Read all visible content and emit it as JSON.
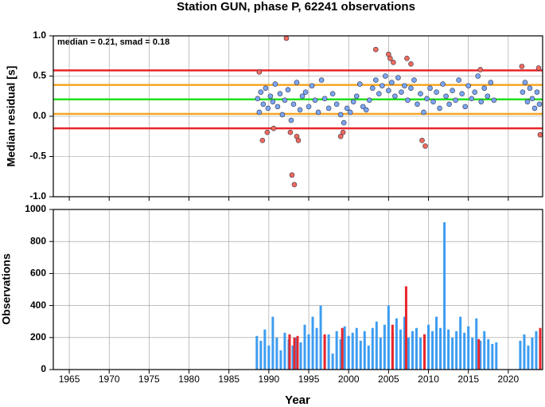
{
  "chart_data": [
    {
      "type": "scatter",
      "title": "Station GUN, phase P, 62241 observations",
      "ylabel": "Median residual [s]",
      "annotation": "median = 0.21, smad = 0.18",
      "xlim": [
        1963,
        2024.3
      ],
      "xticks": [
        1965,
        1970,
        1975,
        1980,
        1985,
        1990,
        1995,
        2000,
        2005,
        2010,
        2015,
        2020
      ],
      "ylim": [
        -1,
        1
      ],
      "yticks": [
        {
          "value": -1,
          "label": "-1.0"
        },
        {
          "value": -0.5,
          "label": "-0.5"
        },
        {
          "value": 0,
          "label": "0.0"
        },
        {
          "value": 0.5,
          "label": "0.5"
        },
        {
          "value": 1,
          "label": "1.0"
        }
      ],
      "grid": true,
      "hlines": [
        {
          "value": 0.57,
          "color": "#e8262b"
        },
        {
          "value": 0.39,
          "color": "#f5a623"
        },
        {
          "value": 0.21,
          "color": "#22e01e"
        },
        {
          "value": 0.03,
          "color": "#f5a623"
        },
        {
          "value": -0.15,
          "color": "#e8262b"
        }
      ],
      "series": [
        {
          "color": "#7aa6f5",
          "x": [
            1988.6,
            1988.8,
            1989.0,
            1989.3,
            1989.6,
            1989.9,
            1990.2,
            1990.5,
            1990.8,
            1991.1,
            1991.4,
            1991.7,
            1992.0,
            1992.4,
            1992.8,
            1993.1,
            1993.5,
            1993.9,
            1994.2,
            1994.6,
            1995.0,
            1995.4,
            1995.8,
            1996.2,
            1996.6,
            1997.0,
            1997.5,
            1998.0,
            1998.5,
            1999.0,
            1999.4,
            1999.8,
            2000.2,
            2000.6,
            2001.0,
            2001.4,
            2001.8,
            2002.2,
            2002.6,
            2003.0,
            2003.4,
            2003.8,
            2004.2,
            2004.6,
            2005.0,
            2005.4,
            2005.8,
            2006.2,
            2006.6,
            2007.0,
            2007.4,
            2007.8,
            2008.2,
            2008.6,
            2009.0,
            2009.4,
            2009.8,
            2010.2,
            2010.6,
            2011.0,
            2011.4,
            2011.8,
            2012.2,
            2012.6,
            2013.0,
            2013.4,
            2013.8,
            2014.2,
            2014.6,
            2015.0,
            2015.4,
            2015.8,
            2016.2,
            2016.6,
            2017.0,
            2017.4,
            2017.8,
            2018.2,
            2021.8,
            2022.1,
            2022.4,
            2022.7,
            2023.0,
            2023.3,
            2023.6,
            2023.9
          ],
          "values": [
            0.22,
            0.05,
            0.3,
            0.15,
            0.35,
            0.1,
            0.25,
            0.18,
            0.4,
            0.12,
            0.28,
            0.02,
            0.2,
            0.33,
            -0.05,
            0.15,
            0.42,
            0.08,
            0.25,
            0.3,
            0.12,
            0.38,
            0.2,
            0.05,
            0.45,
            0.22,
            0.1,
            0.28,
            0.15,
            0.02,
            -0.08,
            0.1,
            0.05,
            0.18,
            0.25,
            0.4,
            0.12,
            0.08,
            0.2,
            0.35,
            0.45,
            0.28,
            0.38,
            0.5,
            0.32,
            0.42,
            0.25,
            0.48,
            0.3,
            0.38,
            0.2,
            0.35,
            0.45,
            0.15,
            0.28,
            0.05,
            0.22,
            0.35,
            0.18,
            0.3,
            0.1,
            0.4,
            0.25,
            0.15,
            0.32,
            0.2,
            0.45,
            0.28,
            0.12,
            0.38,
            0.22,
            0.3,
            0.5,
            0.18,
            0.35,
            0.25,
            0.42,
            0.2,
            0.3,
            0.42,
            0.18,
            0.35,
            0.22,
            0.1,
            0.3,
            0.15
          ]
        },
        {
          "color": "#f26a5e",
          "x": [
            1988.8,
            1989.2,
            1989.8,
            1990.6,
            1992.2,
            1992.7,
            1992.9,
            1993.2,
            1993.5,
            1993.7,
            1999.0,
            1999.3,
            2003.4,
            2005.0,
            2005.2,
            2005.6,
            2007.3,
            2007.8,
            2009.2,
            2009.6,
            2016.5,
            2021.7,
            2023.8,
            2024.0
          ],
          "values": [
            0.55,
            -0.3,
            -0.2,
            -0.15,
            0.97,
            -0.2,
            -0.73,
            -0.85,
            -0.25,
            -0.3,
            -0.25,
            -0.2,
            0.83,
            0.77,
            0.72,
            0.67,
            0.72,
            0.65,
            -0.3,
            -0.37,
            0.58,
            0.62,
            0.6,
            -0.23
          ]
        }
      ]
    },
    {
      "type": "bar",
      "xlabel": "Year",
      "ylabel": "Observations",
      "xlim": [
        1963,
        2024.3
      ],
      "xticks": [
        1965,
        1970,
        1975,
        1980,
        1985,
        1990,
        1995,
        2000,
        2005,
        2010,
        2015,
        2020
      ],
      "ylim": [
        0,
        1000
      ],
      "yticks": [
        0,
        200,
        400,
        600,
        800,
        1000
      ],
      "grid": true,
      "series": [
        {
          "color": "#3d9df0",
          "x": [
            1988.5,
            1989,
            1989.5,
            1990,
            1990.5,
            1991,
            1991.5,
            1992,
            1992.5,
            1993,
            1993.5,
            1994,
            1994.5,
            1995,
            1995.5,
            1996,
            1996.5,
            1997,
            1997.5,
            1998,
            1998.5,
            1999,
            1999.5,
            2000,
            2000.5,
            2001,
            2001.5,
            2002,
            2002.5,
            2003,
            2003.5,
            2004,
            2004.5,
            2005,
            2005.5,
            2006,
            2006.5,
            2007,
            2007.5,
            2008,
            2008.5,
            2009,
            2009.5,
            2010,
            2010.5,
            2011,
            2011.5,
            2012,
            2012.5,
            2013,
            2013.5,
            2014,
            2014.5,
            2015,
            2015.5,
            2016,
            2016.5,
            2017,
            2017.5,
            2018,
            2018.5,
            2021.5,
            2022,
            2022.5,
            2023,
            2023.5
          ],
          "values": [
            210,
            180,
            250,
            150,
            330,
            200,
            120,
            230,
            190,
            150,
            200,
            170,
            280,
            220,
            330,
            260,
            400,
            180,
            220,
            100,
            240,
            190,
            270,
            210,
            230,
            260,
            180,
            240,
            150,
            260,
            300,
            200,
            280,
            400,
            230,
            320,
            250,
            330,
            200,
            240,
            260,
            200,
            220,
            280,
            240,
            330,
            260,
            920,
            250,
            200,
            240,
            330,
            230,
            270,
            200,
            320,
            180,
            240,
            190,
            160,
            170,
            180,
            220,
            150,
            200,
            240
          ]
        },
        {
          "color": "#e8262b",
          "x": [
            1992.6,
            1993.2,
            1993.6,
            1997.0,
            1999.2,
            2005.5,
            2007.2,
            2009.5,
            2016.3,
            2024.0
          ],
          "values": [
            220,
            200,
            210,
            220,
            260,
            280,
            520,
            220,
            190,
            260
          ]
        }
      ]
    }
  ]
}
